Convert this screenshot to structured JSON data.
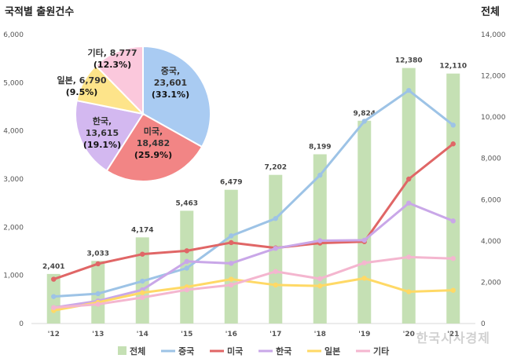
{
  "header": {
    "left_title": "국적별 출원건수",
    "right_title": "전체"
  },
  "watermark": "한국시사경제",
  "chart_data": {
    "type": "bar+line+pie",
    "categories": [
      "'12",
      "'13",
      "'14",
      "'15",
      "'16",
      "'17",
      "'18",
      "'19",
      "'20",
      "'21"
    ],
    "left_axis": {
      "ticks": [
        "0",
        "1,000",
        "2,000",
        "3,000",
        "4,000",
        "5,000",
        "6,000"
      ],
      "ylim": [
        0,
        6000
      ]
    },
    "right_axis": {
      "ticks": [
        "0",
        "2,000",
        "4,000",
        "6,000",
        "8,000",
        "10,000",
        "12,000",
        "14,000"
      ],
      "ylim": [
        0,
        14000
      ]
    },
    "bars": {
      "name": "전체",
      "color": "#c5e0b4",
      "values": [
        2401,
        3033,
        4174,
        5463,
        6479,
        7202,
        8199,
        9824,
        12380,
        12110
      ],
      "labels": [
        "2,401",
        "3,033",
        "4,174",
        "5,463",
        "6,479",
        "7,202",
        "8,199",
        "9,824",
        "12,380",
        "12,110"
      ]
    },
    "series": [
      {
        "name": "중국",
        "color": "#9dc3e6",
        "values": [
          560,
          620,
          880,
          1150,
          1820,
          2180,
          3080,
          4200,
          4840,
          4120
        ]
      },
      {
        "name": "미국",
        "color": "#e06666",
        "values": [
          920,
          1240,
          1440,
          1510,
          1680,
          1570,
          1670,
          1700,
          3000,
          3730
        ]
      },
      {
        "name": "한국",
        "color": "#c9a7e8",
        "values": [
          330,
          470,
          700,
          1290,
          1250,
          1560,
          1720,
          1730,
          2500,
          2130
        ]
      },
      {
        "name": "일본",
        "color": "#ffd966",
        "values": [
          270,
          440,
          640,
          760,
          920,
          800,
          780,
          940,
          660,
          690
        ]
      },
      {
        "name": "기타",
        "color": "#f4b6cf",
        "values": [
          330,
          400,
          540,
          700,
          800,
          1080,
          930,
          1260,
          1380,
          1350
        ]
      }
    ],
    "legend": [
      "전체",
      "중국",
      "미국",
      "한국",
      "일본",
      "기타"
    ],
    "legend_position": "bottom",
    "pie": {
      "slices": [
        {
          "name": "중국",
          "value": 23601,
          "percent": 33.1,
          "value_label": "23,601",
          "percent_label": "(33.1%)",
          "color": "#a9cbf2"
        },
        {
          "name": "미국",
          "value": 18482,
          "percent": 25.9,
          "value_label": "18,482",
          "percent_label": "(25.9%)",
          "color": "#f28585"
        },
        {
          "name": "한국",
          "value": 13615,
          "percent": 19.1,
          "value_label": "13,615",
          "percent_label": "(19.1%)",
          "color": "#d3b8f0"
        },
        {
          "name": "일본",
          "value": 6790,
          "percent": 9.5,
          "value_label": "6,790",
          "percent_label": "(9.5%)",
          "color": "#fde48a"
        },
        {
          "name": "기타",
          "value": 8777,
          "percent": 12.3,
          "value_label": "8,777",
          "percent_label": "(12.3%)",
          "color": "#fbc8dc"
        }
      ]
    }
  }
}
